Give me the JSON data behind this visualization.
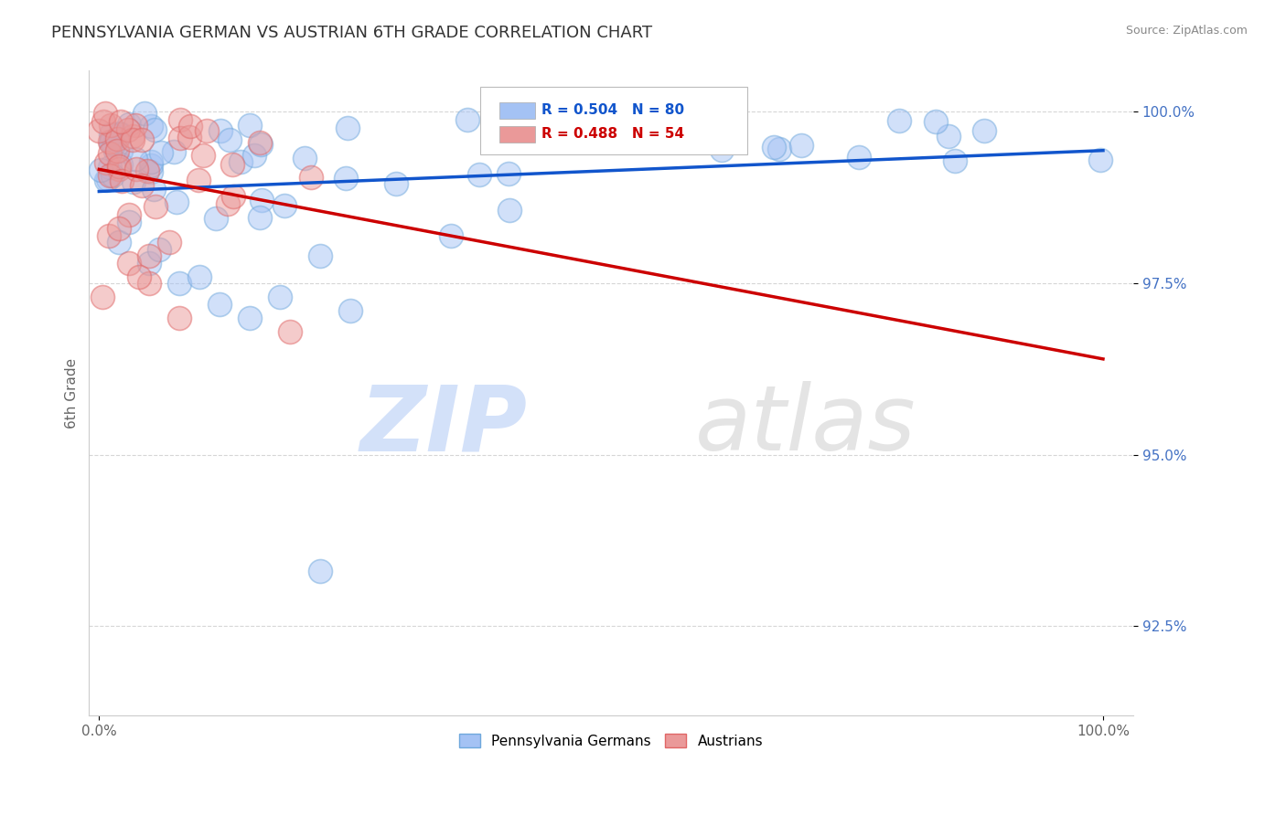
{
  "title": "PENNSYLVANIA GERMAN VS AUSTRIAN 6TH GRADE CORRELATION CHART",
  "source": "Source: ZipAtlas.com",
  "ylabel": "6th Grade",
  "blue_label": "Pennsylvania Germans",
  "pink_label": "Austrians",
  "blue_color": "#a4c2f4",
  "pink_color": "#ea9999",
  "blue_edge_color": "#6fa8dc",
  "pink_edge_color": "#e06666",
  "blue_line_color": "#1155cc",
  "pink_line_color": "#cc0000",
  "legend_blue_text": "R = 0.504   N = 80",
  "legend_pink_text": "R = 0.488   N = 54",
  "yaxis_ticks": [
    92.5,
    95.0,
    97.5,
    100.0
  ],
  "yaxis_labels": [
    "92.5%",
    "95.0%",
    "97.5%",
    "100.0%"
  ],
  "ylim_min": 91.2,
  "ylim_max": 100.6,
  "xlim_min": -1,
  "xlim_max": 103,
  "grid_color": "#cccccc",
  "spine_color": "#cccccc",
  "tick_color": "#666666",
  "yaxis_tick_color": "#4472c4",
  "title_color": "#333333",
  "source_color": "#888888",
  "watermark_zip_color": "#c9daf8",
  "watermark_atlas_color": "#d9d9d9"
}
